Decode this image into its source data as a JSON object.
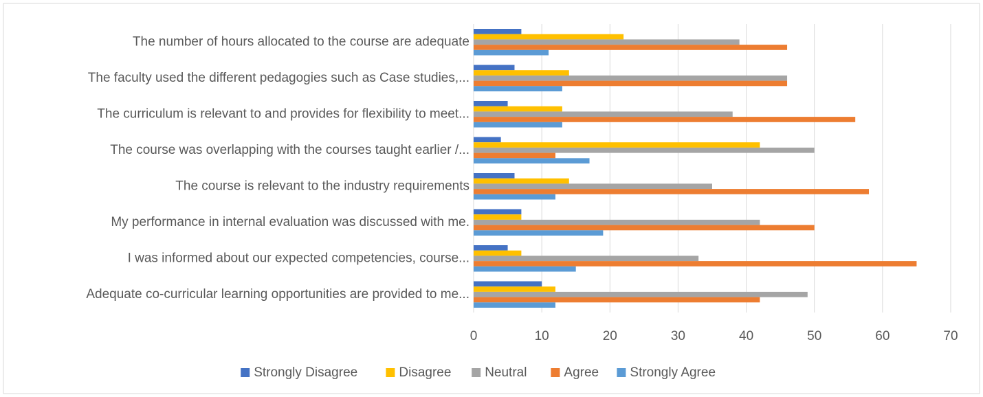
{
  "chart_data": {
    "type": "hbar",
    "categories": [
      "The number of hours allocated to the course are adequate",
      "The faculty used the different pedagogies such as Case studies,...",
      "The curriculum is relevant to and provides for flexibility to meet...",
      "The course was overlapping with the courses taught earlier /...",
      "The course is relevant to the industry requirements",
      "My performance in internal evaluation was discussed with me.",
      "I was informed about our expected competencies, course...",
      "Adequate co-curricular learning opportunities are provided to me..."
    ],
    "series": [
      {
        "name": "Strongly Disagree",
        "color": "#4472c4",
        "values": [
          7,
          6,
          5,
          4,
          6,
          7,
          5,
          10
        ]
      },
      {
        "name": "Disagree",
        "color": "#ffc000",
        "values": [
          22,
          14,
          13,
          42,
          14,
          7,
          7,
          12
        ]
      },
      {
        "name": "Neutral",
        "color": "#a5a5a5",
        "values": [
          39,
          46,
          38,
          50,
          35,
          42,
          33,
          49
        ]
      },
      {
        "name": "Agree",
        "color": "#ed7d31",
        "values": [
          46,
          46,
          56,
          12,
          58,
          50,
          65,
          42
        ]
      },
      {
        "name": "Strongly Agree",
        "color": "#5b9bd5",
        "values": [
          11,
          13,
          13,
          17,
          12,
          19,
          15,
          12
        ]
      }
    ],
    "xlim": [
      0,
      70
    ],
    "xticks": [
      0,
      10,
      20,
      30,
      40,
      50,
      60,
      70
    ],
    "grid": true,
    "legend": "bottom"
  }
}
